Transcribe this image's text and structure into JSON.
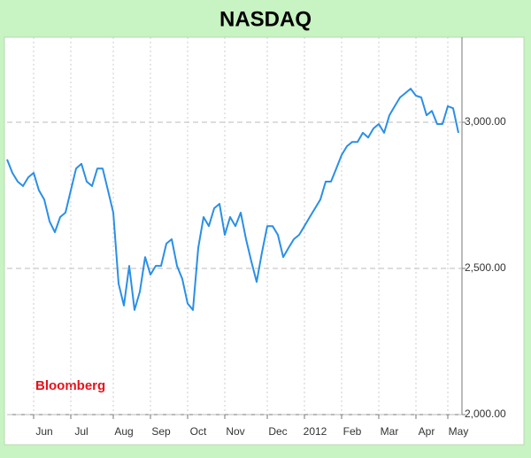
{
  "chart_data": {
    "type": "line",
    "title": "NASDAQ",
    "annotation": "Bloomberg",
    "categories": [
      null,
      null,
      null,
      null,
      null,
      null,
      null,
      "Jun",
      null,
      null,
      null,
      null,
      null,
      null,
      "Jul",
      null,
      null,
      null,
      null,
      null,
      null,
      null,
      "Aug",
      null,
      null,
      null,
      null,
      null,
      null,
      "Sep",
      null,
      null,
      null,
      null,
      null,
      null,
      "Oct",
      null,
      null,
      null,
      null,
      null,
      null,
      "Nov",
      null,
      null,
      null,
      null,
      null,
      null,
      null,
      "Dec",
      null,
      null,
      null,
      null,
      null,
      null,
      "2012",
      null,
      null,
      null,
      null,
      null,
      null,
      "Feb",
      null,
      null,
      null,
      null,
      null,
      null,
      "Mar",
      null,
      null,
      null,
      null,
      null,
      null,
      "Apr",
      null,
      null,
      null,
      null,
      null,
      "May"
    ],
    "values": [
      2873,
      2827,
      2797,
      2782,
      2812,
      2827,
      2767,
      2736,
      2661,
      2624,
      2676,
      2691,
      2767,
      2842,
      2858,
      2797,
      2782,
      2842,
      2842,
      2767,
      2691,
      2448,
      2373,
      2509,
      2358,
      2420,
      2539,
      2479,
      2509,
      2509,
      2585,
      2600,
      2509,
      2464,
      2380,
      2358,
      2570,
      2676,
      2645,
      2706,
      2721,
      2615,
      2676,
      2645,
      2691,
      2600,
      2524,
      2454,
      2555,
      2645,
      2645,
      2615,
      2539,
      2570,
      2600,
      2615,
      2645,
      2676,
      2706,
      2736,
      2797,
      2797,
      2842,
      2888,
      2918,
      2933,
      2933,
      2964,
      2948,
      2979,
      2994,
      2964,
      3024,
      3055,
      3085,
      3100,
      3115,
      3091,
      3085,
      3024,
      3039,
      2994,
      2994,
      3055,
      3048,
      2964
    ],
    "color": "#2a8fe6",
    "ylim": [
      2000,
      3282
    ],
    "yticks": [
      {
        "value": 2000,
        "label": "2,000.00"
      },
      {
        "value": 2500,
        "label": "2,500.00"
      },
      {
        "value": 3000,
        "label": "3,000.00"
      }
    ],
    "grid": true
  }
}
